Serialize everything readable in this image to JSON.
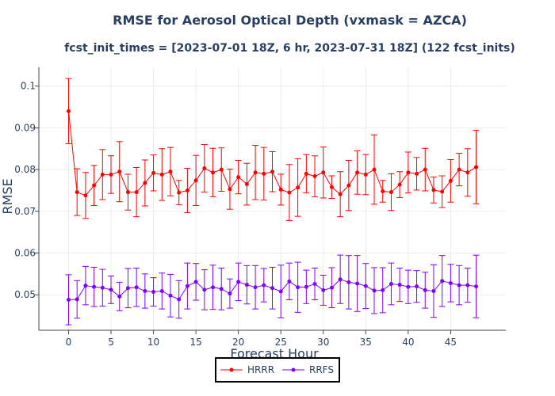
{
  "colors": {
    "hrrr": "#ff0000",
    "rrfs": "#8000ff",
    "text": "#2a3f5f",
    "grid": "#ebebeb"
  },
  "chart_data": {
    "type": "line",
    "title": "RMSE for Aerosol Optical Depth (vxmask = AZCA)",
    "subtitle": "fcst_init_times = [2023-07-01 18Z, 6 hr, 2023-07-31 18Z] (122 fcst_inits)",
    "xlabel": "Forecast Hour",
    "ylabel": "RMSE",
    "xlim": [
      -3.5,
      51.5
    ],
    "ylim": [
      0.0415,
      0.1045
    ],
    "xticks": [
      0,
      5,
      10,
      15,
      20,
      25,
      30,
      35,
      40,
      45
    ],
    "xtick_labels": [
      "0",
      "5",
      "10",
      "15",
      "20",
      "25",
      "30",
      "35",
      "40",
      "45"
    ],
    "yticks": [
      0.05,
      0.06,
      0.07,
      0.08,
      0.09,
      0.1
    ],
    "ytick_labels": [
      "0.05",
      "0.06",
      "0.07",
      "0.08",
      "0.09",
      "0.1"
    ],
    "legend_position": "bottom-center",
    "x": [
      0,
      1,
      2,
      3,
      4,
      5,
      6,
      7,
      8,
      9,
      10,
      11,
      12,
      13,
      14,
      15,
      16,
      17,
      18,
      19,
      20,
      21,
      22,
      23,
      24,
      25,
      26,
      27,
      28,
      29,
      30,
      31,
      32,
      33,
      34,
      35,
      36,
      37,
      38,
      39,
      40,
      41,
      42,
      43,
      44,
      45,
      46,
      47,
      48
    ],
    "series": [
      {
        "name": "HRRR",
        "color": "#ff0000",
        "values": [
          0.094,
          0.0746,
          0.0738,
          0.0762,
          0.0788,
          0.0788,
          0.0795,
          0.0746,
          0.0746,
          0.0768,
          0.0792,
          0.0788,
          0.0795,
          0.0745,
          0.075,
          0.0774,
          0.0803,
          0.0793,
          0.08,
          0.0753,
          0.0782,
          0.0765,
          0.0793,
          0.079,
          0.0795,
          0.0752,
          0.0745,
          0.0757,
          0.079,
          0.0784,
          0.0793,
          0.0758,
          0.0741,
          0.0762,
          0.0793,
          0.0788,
          0.08,
          0.0748,
          0.0746,
          0.0764,
          0.0793,
          0.079,
          0.08,
          0.0751,
          0.0747,
          0.0773,
          0.08,
          0.0793,
          0.0806
        ],
        "err": [
          0.0078,
          0.0056,
          0.0055,
          0.0048,
          0.006,
          0.0045,
          0.0072,
          0.0043,
          0.0059,
          0.0055,
          0.0043,
          0.0062,
          0.0058,
          0.0029,
          0.0053,
          0.006,
          0.0057,
          0.0058,
          0.0052,
          0.0048,
          0.004,
          0.005,
          0.0065,
          0.0063,
          0.0048,
          0.0037,
          0.0067,
          0.0069,
          0.0046,
          0.0049,
          0.0061,
          0.0027,
          0.0054,
          0.006,
          0.0052,
          0.0048,
          0.0083,
          0.0026,
          0.0044,
          0.0031,
          0.0049,
          0.0039,
          0.0051,
          0.0031,
          0.0038,
          0.0051,
          0.0039,
          0.0057,
          0.0088
        ]
      },
      {
        "name": "RRFS",
        "color": "#8000ff",
        "values": [
          0.0488,
          0.0489,
          0.0522,
          0.0519,
          0.0517,
          0.0512,
          0.0496,
          0.0516,
          0.0518,
          0.0509,
          0.0507,
          0.0509,
          0.0498,
          0.0489,
          0.0521,
          0.0531,
          0.0512,
          0.0518,
          0.0514,
          0.0503,
          0.0531,
          0.0524,
          0.0518,
          0.0523,
          0.0516,
          0.0508,
          0.0532,
          0.0518,
          0.0519,
          0.0526,
          0.0511,
          0.0517,
          0.0537,
          0.053,
          0.0527,
          0.0521,
          0.051,
          0.0511,
          0.0526,
          0.0524,
          0.0519,
          0.052,
          0.0511,
          0.0509,
          0.0533,
          0.0528,
          0.0523,
          0.0523,
          0.052
        ],
        "err": [
          0.006,
          0.0045,
          0.0046,
          0.0047,
          0.0044,
          0.0033,
          0.0034,
          0.0047,
          0.0046,
          0.0041,
          0.0034,
          0.0043,
          0.0051,
          0.0045,
          0.0055,
          0.0044,
          0.0048,
          0.0053,
          0.005,
          0.0035,
          0.0045,
          0.0046,
          0.0052,
          0.004,
          0.005,
          0.0063,
          0.0044,
          0.006,
          0.004,
          0.0038,
          0.0036,
          0.0048,
          0.0058,
          0.0064,
          0.0067,
          0.0054,
          0.0055,
          0.0054,
          0.005,
          0.004,
          0.004,
          0.0038,
          0.0043,
          0.0063,
          0.0061,
          0.0045,
          0.0047,
          0.0041,
          0.0075
        ]
      }
    ]
  }
}
